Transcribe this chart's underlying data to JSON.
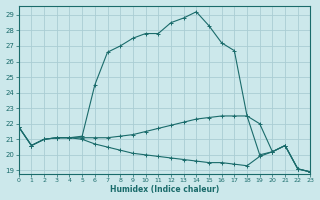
{
  "xlabel": "Humidex (Indice chaleur)",
  "bg_color": "#cce8eb",
  "grid_color": "#aacdd4",
  "line_color": "#1a6b6b",
  "xlim": [
    0,
    23
  ],
  "ylim": [
    18.8,
    29.6
  ],
  "yticks": [
    19,
    20,
    21,
    22,
    23,
    24,
    25,
    26,
    27,
    28,
    29
  ],
  "xticks": [
    0,
    1,
    2,
    3,
    4,
    5,
    6,
    7,
    8,
    9,
    10,
    11,
    12,
    13,
    14,
    15,
    16,
    17,
    18,
    19,
    20,
    21,
    22,
    23
  ],
  "line1_x": [
    0,
    1,
    2,
    3,
    4,
    5,
    6,
    7,
    8,
    9,
    10,
    11,
    12,
    13,
    14,
    15,
    16,
    17,
    18,
    19,
    20,
    21,
    22,
    23
  ],
  "line1_y": [
    21.8,
    20.6,
    21.0,
    21.1,
    21.1,
    21.2,
    24.5,
    26.6,
    27.0,
    27.5,
    27.8,
    27.8,
    28.5,
    28.8,
    29.2,
    28.3,
    27.2,
    26.7,
    22.5,
    20.0,
    20.2,
    20.6,
    19.1,
    18.9
  ],
  "line2_x": [
    0,
    1,
    2,
    3,
    4,
    5,
    6,
    7,
    8,
    9,
    10,
    11,
    12,
    13,
    14,
    15,
    16,
    17,
    18,
    19,
    20,
    21,
    22,
    23
  ],
  "line2_y": [
    21.8,
    20.6,
    21.0,
    21.1,
    21.1,
    21.1,
    21.1,
    21.1,
    21.2,
    21.3,
    21.5,
    21.7,
    21.9,
    22.1,
    22.3,
    22.4,
    22.5,
    22.5,
    22.5,
    22.0,
    20.2,
    20.6,
    19.1,
    18.9
  ],
  "line3_x": [
    0,
    1,
    2,
    3,
    4,
    5,
    6,
    7,
    8,
    9,
    10,
    11,
    12,
    13,
    14,
    15,
    16,
    17,
    18,
    19,
    20,
    21,
    22,
    23
  ],
  "line3_y": [
    21.8,
    20.6,
    21.0,
    21.1,
    21.1,
    21.0,
    20.7,
    20.5,
    20.3,
    20.1,
    20.0,
    19.9,
    19.8,
    19.7,
    19.6,
    19.5,
    19.5,
    19.4,
    19.3,
    19.9,
    20.2,
    20.6,
    19.1,
    18.9
  ]
}
